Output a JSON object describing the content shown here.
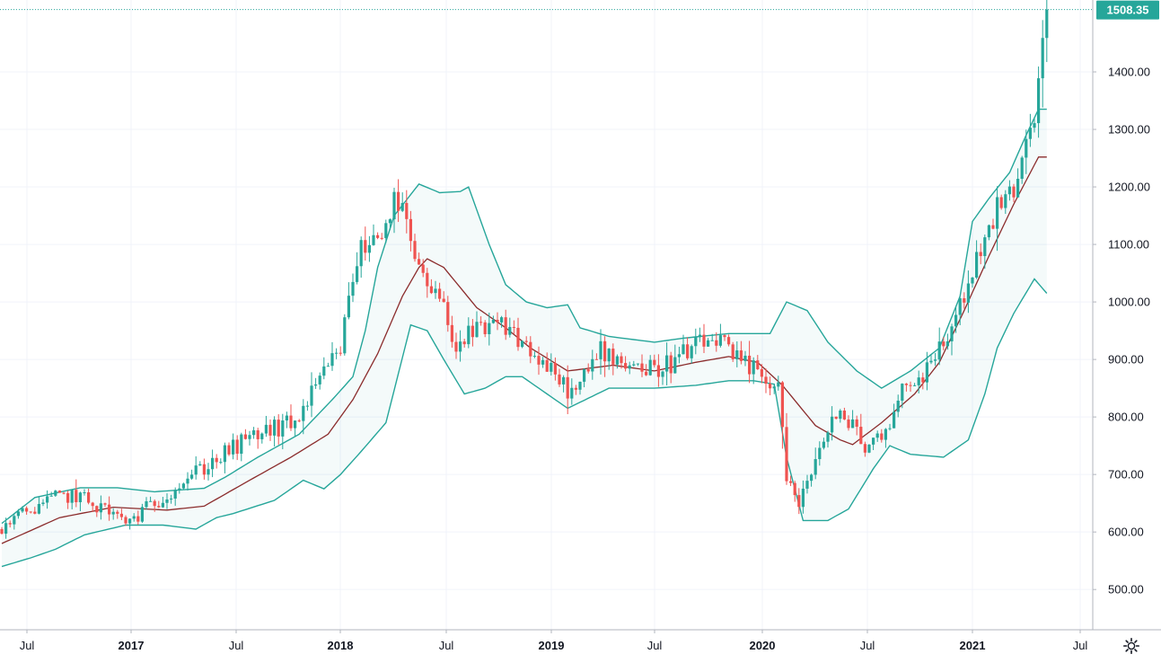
{
  "chart_data": {
    "type": "candlestick",
    "symbol": "",
    "interval": "1W",
    "y_axis": {
      "min": 430,
      "max": 1525,
      "ticks": [
        "500.00",
        "600.00",
        "700.00",
        "800.00",
        "900.00",
        "1000.00",
        "1100.00",
        "1200.00",
        "1300.00",
        "1400.00"
      ]
    },
    "x_axis": {
      "ticks": [
        {
          "label": "Jul",
          "year": false
        },
        {
          "label": "2017",
          "year": true
        },
        {
          "label": "Jul",
          "year": false
        },
        {
          "label": "2018",
          "year": true
        },
        {
          "label": "Jul",
          "year": false
        },
        {
          "label": "2019",
          "year": true
        },
        {
          "label": "Jul",
          "year": false
        },
        {
          "label": "2020",
          "year": true
        },
        {
          "label": "Jul",
          "year": false
        },
        {
          "label": "2021",
          "year": true
        },
        {
          "label": "Jul",
          "year": false
        }
      ]
    },
    "last_price": "1508.35",
    "colors": {
      "up": "#26a69a",
      "down": "#ef5350",
      "band": "#26a69a",
      "band_fill": "#26a69a",
      "basis": "#8b2c2c",
      "grid": "#f0f3fa",
      "axis": "#131722"
    },
    "bollinger_anchor_points": {
      "basis": [
        [
          0,
          580
        ],
        [
          14,
          625
        ],
        [
          27,
          643
        ],
        [
          40,
          638
        ],
        [
          49,
          645
        ],
        [
          60,
          690
        ],
        [
          70,
          730
        ],
        [
          79,
          770
        ],
        [
          85,
          830
        ],
        [
          91,
          910
        ],
        [
          97,
          1010
        ],
        [
          101,
          1060
        ],
        [
          103,
          1075
        ],
        [
          107,
          1060
        ],
        [
          115,
          990
        ],
        [
          122,
          955
        ],
        [
          128,
          920
        ],
        [
          137,
          880
        ],
        [
          148,
          890
        ],
        [
          158,
          880
        ],
        [
          168,
          895
        ],
        [
          176,
          905
        ],
        [
          183,
          895
        ],
        [
          189,
          855
        ],
        [
          193,
          820
        ],
        [
          197,
          785
        ],
        [
          203,
          760
        ],
        [
          206,
          752
        ],
        [
          213,
          790
        ],
        [
          221,
          840
        ],
        [
          227,
          895
        ],
        [
          233,
          985
        ],
        [
          239,
          1080
        ],
        [
          245,
          1170
        ],
        [
          251,
          1252
        ]
      ],
      "upper": [
        [
          0,
          615
        ],
        [
          8,
          660
        ],
        [
          19,
          677
        ],
        [
          28,
          677
        ],
        [
          37,
          670
        ],
        [
          49,
          676
        ],
        [
          54,
          695
        ],
        [
          62,
          730
        ],
        [
          72,
          770
        ],
        [
          80,
          830
        ],
        [
          85,
          870
        ],
        [
          88,
          950
        ],
        [
          91,
          1060
        ],
        [
          95,
          1150
        ],
        [
          101,
          1205
        ],
        [
          106,
          1190
        ],
        [
          111,
          1192
        ],
        [
          113,
          1200
        ],
        [
          118,
          1100
        ],
        [
          122,
          1030
        ],
        [
          127,
          1000
        ],
        [
          132,
          990
        ],
        [
          137,
          995
        ],
        [
          140,
          955
        ],
        [
          147,
          940
        ],
        [
          158,
          930
        ],
        [
          165,
          937
        ],
        [
          176,
          945
        ],
        [
          183,
          945
        ],
        [
          186,
          945
        ],
        [
          190,
          1000
        ],
        [
          195,
          985
        ],
        [
          200,
          930
        ],
        [
          207,
          880
        ],
        [
          213,
          850
        ],
        [
          220,
          880
        ],
        [
          227,
          920
        ],
        [
          232,
          1010
        ],
        [
          235,
          1140
        ],
        [
          239,
          1180
        ],
        [
          244,
          1225
        ],
        [
          248,
          1290
        ],
        [
          251,
          1335
        ]
      ],
      "lower": [
        [
          0,
          540
        ],
        [
          7,
          555
        ],
        [
          13,
          570
        ],
        [
          20,
          595
        ],
        [
          30,
          612
        ],
        [
          39,
          612
        ],
        [
          47,
          605
        ],
        [
          52,
          625
        ],
        [
          56,
          632
        ],
        [
          66,
          655
        ],
        [
          73,
          690
        ],
        [
          78,
          675
        ],
        [
          82,
          700
        ],
        [
          87,
          740
        ],
        [
          93,
          790
        ],
        [
          99,
          960
        ],
        [
          103,
          950
        ],
        [
          107,
          900
        ],
        [
          112,
          840
        ],
        [
          117,
          850
        ],
        [
          122,
          870
        ],
        [
          126,
          870
        ],
        [
          133,
          835
        ],
        [
          137,
          815
        ],
        [
          147,
          850
        ],
        [
          158,
          850
        ],
        [
          168,
          855
        ],
        [
          176,
          863
        ],
        [
          182,
          863
        ],
        [
          187,
          857
        ],
        [
          190,
          730
        ],
        [
          194,
          620
        ],
        [
          200,
          620
        ],
        [
          205,
          640
        ],
        [
          211,
          710
        ],
        [
          215,
          750
        ],
        [
          220,
          735
        ],
        [
          228,
          730
        ],
        [
          234,
          760
        ],
        [
          238,
          840
        ],
        [
          241,
          920
        ],
        [
          245,
          980
        ],
        [
          250,
          1040
        ],
        [
          253,
          1015
        ]
      ]
    },
    "candle_anchor_points": [
      [
        0,
        605
      ],
      [
        9,
        650
      ],
      [
        17,
        665
      ],
      [
        25,
        640
      ],
      [
        30,
        615
      ],
      [
        35,
        640
      ],
      [
        45,
        695
      ],
      [
        55,
        740
      ],
      [
        62,
        770
      ],
      [
        71,
        790
      ],
      [
        82,
        920
      ],
      [
        86,
        1080
      ],
      [
        91,
        1120
      ],
      [
        96,
        1180
      ],
      [
        101,
        1045
      ],
      [
        106,
        1000
      ],
      [
        110,
        930
      ],
      [
        115,
        945
      ],
      [
        122,
        960
      ],
      [
        126,
        930
      ],
      [
        130,
        900
      ],
      [
        135,
        860
      ],
      [
        139,
        840
      ],
      [
        145,
        920
      ],
      [
        148,
        905
      ],
      [
        158,
        880
      ],
      [
        163,
        900
      ],
      [
        168,
        920
      ],
      [
        173,
        940
      ],
      [
        177,
        900
      ],
      [
        182,
        880
      ],
      [
        188,
        855
      ],
      [
        190,
        700
      ],
      [
        193,
        640
      ],
      [
        197,
        730
      ],
      [
        201,
        790
      ],
      [
        206,
        800
      ],
      [
        209,
        740
      ],
      [
        214,
        780
      ],
      [
        219,
        860
      ],
      [
        224,
        880
      ],
      [
        229,
        940
      ],
      [
        235,
        1050
      ],
      [
        238,
        1120
      ],
      [
        242,
        1170
      ],
      [
        246,
        1200
      ],
      [
        249,
        1300
      ],
      [
        251,
        1380
      ],
      [
        253,
        1508
      ]
    ]
  },
  "ui": {
    "settings_icon": "gear-icon"
  }
}
